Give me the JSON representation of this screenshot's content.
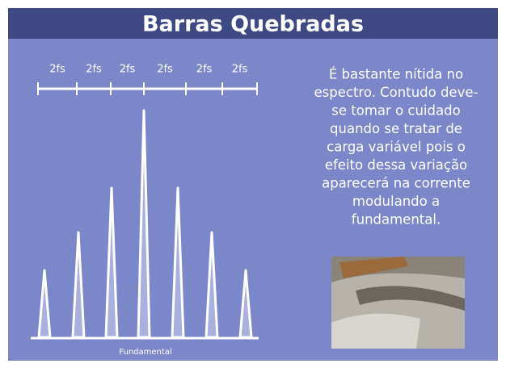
{
  "header": {
    "title": "Barras Quebradas"
  },
  "diagram": {
    "spacing_labels": [
      "2fs",
      "2fs",
      "2fs",
      "2fs",
      "2fs",
      "2fs"
    ],
    "baseline_label": "Fundamental"
  },
  "text": {
    "lines": [
      "É bastante nítida no",
      "espectro. Contudo deve-",
      "se tomar o cuidado",
      "quando se tratar de",
      "carga variável pois o",
      "efeito dessa variação",
      "aparecerá na corrente",
      "modulando a",
      "fundamental."
    ]
  }
}
